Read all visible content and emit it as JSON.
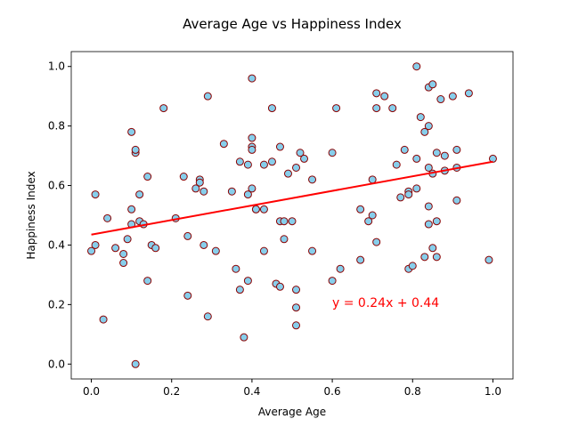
{
  "chart_data": {
    "type": "scatter",
    "title": "Average Age vs Happiness Index",
    "xlabel": "Average Age",
    "ylabel": "Happiness Index",
    "x": [
      0.0,
      0.01,
      0.01,
      0.03,
      0.04,
      0.06,
      0.08,
      0.08,
      0.09,
      0.1,
      0.1,
      0.1,
      0.11,
      0.11,
      0.11,
      0.12,
      0.12,
      0.13,
      0.14,
      0.14,
      0.15,
      0.16,
      0.18,
      0.21,
      0.23,
      0.24,
      0.24,
      0.26,
      0.27,
      0.27,
      0.28,
      0.28,
      0.29,
      0.29,
      0.31,
      0.33,
      0.35,
      0.36,
      0.37,
      0.37,
      0.38,
      0.39,
      0.39,
      0.39,
      0.4,
      0.4,
      0.4,
      0.4,
      0.4,
      0.41,
      0.41,
      0.43,
      0.43,
      0.43,
      0.45,
      0.45,
      0.46,
      0.47,
      0.47,
      0.47,
      0.48,
      0.48,
      0.49,
      0.5,
      0.51,
      0.51,
      0.51,
      0.51,
      0.52,
      0.53,
      0.55,
      0.55,
      0.6,
      0.6,
      0.61,
      0.62,
      0.67,
      0.67,
      0.69,
      0.7,
      0.7,
      0.71,
      0.71,
      0.71,
      0.73,
      0.75,
      0.76,
      0.77,
      0.78,
      0.79,
      0.79,
      0.79,
      0.8,
      0.81,
      0.81,
      0.81,
      0.82,
      0.83,
      0.83,
      0.84,
      0.84,
      0.84,
      0.84,
      0.84,
      0.85,
      0.85,
      0.85,
      0.86,
      0.86,
      0.86,
      0.87,
      0.88,
      0.88,
      0.9,
      0.91,
      0.91,
      0.91,
      0.94,
      0.99,
      1.0
    ],
    "values": [
      0.38,
      0.57,
      0.4,
      0.15,
      0.49,
      0.39,
      0.37,
      0.34,
      0.42,
      0.52,
      0.47,
      0.78,
      0.71,
      0.72,
      0.0,
      0.57,
      0.48,
      0.47,
      0.63,
      0.28,
      0.4,
      0.39,
      0.86,
      0.49,
      0.63,
      0.43,
      0.23,
      0.59,
      0.62,
      0.61,
      0.4,
      0.58,
      0.9,
      0.16,
      0.38,
      0.74,
      0.58,
      0.32,
      0.68,
      0.25,
      0.09,
      0.57,
      0.67,
      0.28,
      0.59,
      0.96,
      0.76,
      0.73,
      0.72,
      0.52,
      0.52,
      0.52,
      0.67,
      0.38,
      0.86,
      0.68,
      0.27,
      0.26,
      0.73,
      0.48,
      0.42,
      0.48,
      0.64,
      0.48,
      0.25,
      0.19,
      0.13,
      0.66,
      0.71,
      0.69,
      0.62,
      0.38,
      0.71,
      0.28,
      0.86,
      0.32,
      0.52,
      0.35,
      0.48,
      0.62,
      0.5,
      0.91,
      0.86,
      0.41,
      0.9,
      0.86,
      0.67,
      0.56,
      0.72,
      0.32,
      0.58,
      0.57,
      0.33,
      0.59,
      0.69,
      1.0,
      0.83,
      0.78,
      0.36,
      0.93,
      0.66,
      0.47,
      0.53,
      0.8,
      0.64,
      0.94,
      0.39,
      0.71,
      0.48,
      0.36,
      0.89,
      0.65,
      0.7,
      0.9,
      0.66,
      0.72,
      0.55,
      0.91,
      0.35,
      0.69
    ],
    "color": "#87ceeb",
    "edgecolor": "#8b0000",
    "xlim": [
      -0.05,
      1.05
    ],
    "ylim": [
      -0.05,
      1.05
    ],
    "xticks": [
      {
        "value": 0,
        "label": "0.0"
      },
      {
        "value": 0.2,
        "label": "0.2"
      },
      {
        "value": 0.4,
        "label": "0.4"
      },
      {
        "value": 0.6,
        "label": "0.6"
      },
      {
        "value": 0.8,
        "label": "0.8"
      },
      {
        "value": 1,
        "label": "1.0"
      }
    ],
    "yticks": [
      {
        "value": 0,
        "label": "0.0"
      },
      {
        "value": 0.2,
        "label": "0.2"
      },
      {
        "value": 0.4,
        "label": "0.4"
      },
      {
        "value": 0.6,
        "label": "0.6"
      },
      {
        "value": 0.8,
        "label": "0.8"
      },
      {
        "value": 1,
        "label": "1.0"
      }
    ],
    "trendline": {
      "x": [
        0,
        1
      ],
      "y": [
        0.435,
        0.68
      ],
      "color": "#ff0000",
      "label": "y = 0.24x + 0.44"
    }
  }
}
